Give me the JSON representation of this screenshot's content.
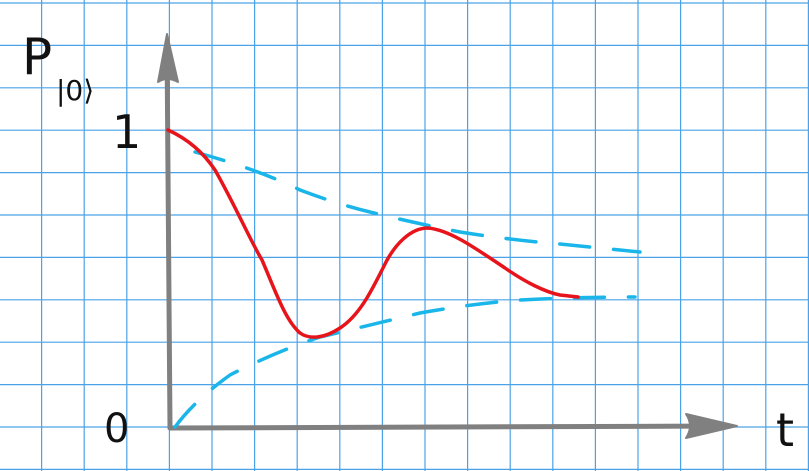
{
  "labels": {
    "y_axis": "P",
    "y_axis_sub": "|0⟩",
    "x_axis": "t",
    "y_one": "1",
    "origin": "0"
  },
  "colors": {
    "grid": "#4aa3e8",
    "axis": "#808080",
    "curve": "#e8141b",
    "envelope": "#1ab6ea",
    "text": "#111111",
    "background": "#ffffff"
  }
}
